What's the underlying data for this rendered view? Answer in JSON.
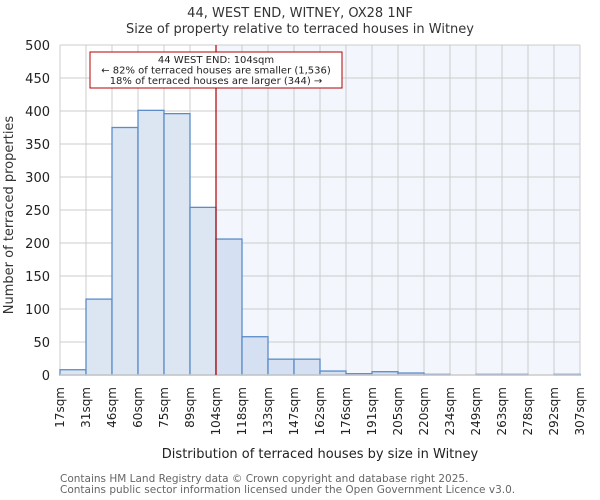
{
  "header": {
    "title": "44, WEST END, WITNEY, OX28 1NF",
    "subtitle": "Size of property relative to terraced houses in Witney"
  },
  "annotation": {
    "line1": "44 WEST END: 104sqm",
    "line2": "← 82% of terraced houses are smaller (1,536)",
    "line3": "18% of terraced houses are larger (344) →"
  },
  "footer": {
    "line1": "Contains HM Land Registry data © Crown copyright and database right 2025.",
    "line2": "Contains public sector information licensed under the Open Government Licence v3.0."
  },
  "colors": {
    "bar_fill_left": "#dce6f3",
    "bar_fill_right": "#d5e0f2",
    "bar_edge": "#5b8cc9",
    "highlight_bg": "#f3f6fc",
    "marker_line": "#b30000",
    "grid": "#cccccc"
  },
  "chart_data": {
    "type": "bar",
    "title": "44, WEST END, WITNEY, OX28 1NF",
    "subtitle": "Size of property relative to terraced houses in Witney",
    "xlabel": "Distribution of terraced houses by size in Witney",
    "ylabel": "Number of terraced properties",
    "ylim": [
      0,
      500
    ],
    "yticks": [
      0,
      50,
      100,
      150,
      200,
      250,
      300,
      350,
      400,
      450,
      500
    ],
    "bin_edges_labels": [
      "17sqm",
      "31sqm",
      "46sqm",
      "60sqm",
      "75sqm",
      "89sqm",
      "104sqm",
      "118sqm",
      "133sqm",
      "147sqm",
      "162sqm",
      "176sqm",
      "191sqm",
      "205sqm",
      "220sqm",
      "234sqm",
      "249sqm",
      "263sqm",
      "278sqm",
      "292sqm",
      "307sqm"
    ],
    "categories": [
      "17-31",
      "31-46",
      "46-60",
      "60-75",
      "75-89",
      "89-104",
      "104-118",
      "118-133",
      "133-147",
      "147-162",
      "162-176",
      "176-191",
      "191-205",
      "205-220",
      "220-234",
      "234-249",
      "249-263",
      "263-278",
      "278-292",
      "292-307"
    ],
    "values": [
      8,
      115,
      375,
      401,
      396,
      254,
      206,
      58,
      24,
      24,
      6,
      2,
      5,
      3,
      1,
      0,
      1,
      1,
      0,
      1
    ],
    "marker": {
      "value_sqm": 104,
      "label": "44 WEST END: 104sqm"
    },
    "grid": true,
    "legend": null
  }
}
